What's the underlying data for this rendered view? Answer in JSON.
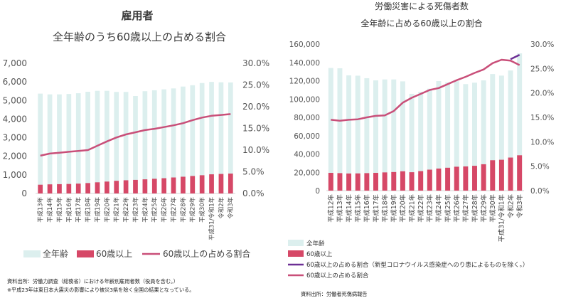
{
  "left": {
    "heading": "雇用者",
    "subtitle": "全年齢のうち60歳以上の占める割合",
    "legend": [
      "全年齢",
      "60歳以上",
      "60歳以上の占める割合"
    ],
    "source_line1": "資料出所：労働力調査（総務省）における年齢別雇用者数（役員を含む。）",
    "source_line2": "※平成23年は東日本大震災の影響により被災3県を除く全国の結果となっている。"
  },
  "right": {
    "title_line1": "労働災害による死傷者数",
    "title_line2": "全年齢に占める60歳以上の割合",
    "legend": [
      "全年齢",
      "60歳以上",
      "60歳以上の占める割合（新型コロナウイルス感染症へのり患によるものを除く。）",
      "60歳以上の占める割合"
    ],
    "source": "資料出所：労働者死傷病報告"
  },
  "colors": {
    "all_ages": "#dcefee",
    "over60": "#d64867",
    "ratio": "#c94f79",
    "ratio_excl": "#6c2f95"
  },
  "chart_data": [
    {
      "type": "bar",
      "title": "全年齢のうち60歳以上の占める割合",
      "categories": [
        "平成13年",
        "平成14年",
        "平成15年",
        "平成16年",
        "平成17年",
        "平成18年",
        "平成19年",
        "平成20年",
        "平成21年",
        "平成22年",
        "平成23年",
        "平成24年",
        "平成25年",
        "平成26年",
        "平成27年",
        "平成28年",
        "平成29年",
        "平成30年",
        "平成31/令和1年",
        "令和2年",
        "令和3年"
      ],
      "y_ticks": [
        "0",
        "1,000",
        "2,000",
        "3,000",
        "4,000",
        "5,000",
        "6,000",
        "7,000"
      ],
      "y2_ticks": [
        "0.0%",
        "5.0%",
        "10.0%",
        "15.0%",
        "20.0%",
        "25.0%",
        "30.0%"
      ],
      "ylim": [
        0,
        7000
      ],
      "y2lim": [
        0,
        30
      ],
      "series": [
        {
          "name": "全年齢",
          "type": "bar",
          "values": [
            5370,
            5330,
            5330,
            5350,
            5390,
            5470,
            5520,
            5520,
            5460,
            5460,
            5240,
            5500,
            5550,
            5600,
            5650,
            5750,
            5820,
            5940,
            6000,
            5980,
            5970
          ]
        },
        {
          "name": "60歳以上",
          "type": "bar",
          "values": [
            470,
            490,
            500,
            510,
            530,
            560,
            600,
            640,
            680,
            710,
            730,
            760,
            790,
            820,
            860,
            900,
            940,
            980,
            1030,
            1050,
            1070
          ]
        },
        {
          "name": "60歳以上の占める割合",
          "type": "line",
          "axis": "y2",
          "values": [
            8.7,
            9.2,
            9.4,
            9.6,
            9.8,
            10.0,
            11.0,
            12.0,
            12.9,
            13.6,
            14.1,
            14.6,
            14.9,
            15.3,
            15.7,
            16.2,
            16.9,
            17.5,
            17.9,
            18.1,
            18.3
          ]
        }
      ],
      "legend_position": "bottom",
      "grid": false
    },
    {
      "type": "bar",
      "title": "労働災害による死傷者数 全年齢に占める60歳以上の割合",
      "categories": [
        "平成12年",
        "平成13年",
        "平成14年",
        "平成15年",
        "平成16年",
        "平成17年",
        "平成18年",
        "平成19年",
        "平成20年",
        "平成21年",
        "平成22年",
        "平成23年",
        "平成24年",
        "平成25年",
        "平成26年",
        "平成27年",
        "平成28年",
        "平成29年",
        "平成30年",
        "平成31/令和1年",
        "令和2年",
        "令和3年"
      ],
      "y_ticks": [
        "0",
        "20,000",
        "40,000",
        "60,000",
        "80,000",
        "100,000",
        "120,000",
        "140,000",
        "160,000"
      ],
      "y2_ticks": [
        "0.0%",
        "5.0%",
        "10.0%",
        "15.0%",
        "20.0%",
        "25.0%",
        "30.0%"
      ],
      "ylim": [
        0,
        160000
      ],
      "y2lim": [
        0,
        30
      ],
      "series": [
        {
          "name": "全年齢",
          "type": "bar",
          "values": [
            133900,
            133600,
            125900,
            125500,
            122800,
            120400,
            121400,
            121400,
            119300,
            105700,
            107800,
            111300,
            119600,
            118200,
            119500,
            116300,
            117900,
            120400,
            127300,
            125600,
            131200,
            149900
          ]
        },
        {
          "name": "60歳以上",
          "type": "bar",
          "values": [
            19400,
            19100,
            18700,
            18800,
            19100,
            19400,
            19900,
            20300,
            21100,
            20100,
            21300,
            22900,
            24100,
            25000,
            26100,
            26400,
            27100,
            28800,
            33200,
            33700,
            36100,
            38600
          ]
        },
        {
          "name": "60歳以上の占める割合（新型コロナウイルス感染症へのり患によるものを除く。）",
          "type": "line",
          "axis": "y2",
          "values": [
            null,
            null,
            null,
            null,
            null,
            null,
            null,
            null,
            null,
            null,
            null,
            null,
            null,
            null,
            null,
            null,
            null,
            null,
            null,
            null,
            26.9,
            27.8
          ]
        },
        {
          "name": "60歳以上の占める割合",
          "type": "line",
          "axis": "y2",
          "values": [
            14.5,
            14.3,
            14.5,
            14.6,
            15.0,
            15.3,
            15.4,
            16.3,
            18.0,
            19.0,
            19.8,
            20.6,
            21.0,
            21.8,
            22.6,
            23.3,
            24.1,
            24.8,
            26.1,
            26.8,
            26.6,
            25.7
          ]
        }
      ],
      "legend_position": "bottom",
      "grid": false
    }
  ]
}
